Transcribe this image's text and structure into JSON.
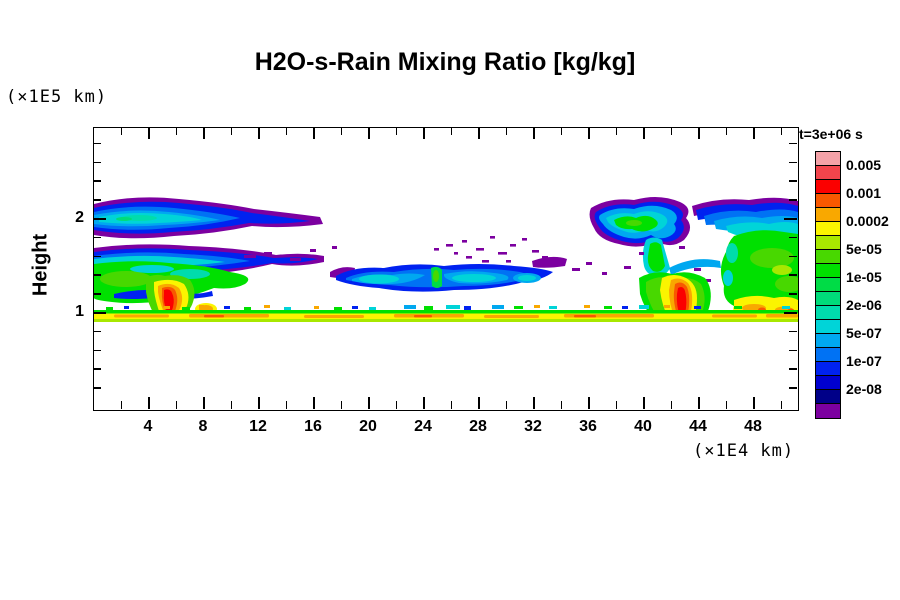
{
  "window": {
    "background": "#ffffff"
  },
  "chart_data": {
    "type": "heatmap",
    "subtype": "filled-contour cross-section",
    "title": "H2O-s-Rain Mixing Ratio [kg/kg]",
    "time_annotation": "t=3e+06 s",
    "x_axis": {
      "unit_label": "(×1E4 km)",
      "range": [
        0,
        51.2
      ],
      "major_ticks": [
        4,
        8,
        12,
        16,
        20,
        24,
        28,
        32,
        36,
        40,
        44,
        48
      ],
      "minor_tick_step": 2
    },
    "y_axis": {
      "label": "Height",
      "unit_label": "(×1E5 km)",
      "range": [
        0,
        3.0
      ],
      "major_ticks": [
        1,
        2
      ],
      "minor_tick_step": 0.2
    },
    "colorbar": {
      "scale": "logarithmic 1-2-5 steps, highest values at top",
      "labels": [
        "0.005",
        "0.001",
        "0.0002",
        "5e-05",
        "1e-05",
        "2e-06",
        "5e-07",
        "1e-07",
        "2e-08"
      ],
      "colors_top_to_bottom": [
        "#F4A2A8",
        "#F2444C",
        "#FB0000",
        "#F85800",
        "#F9A800",
        "#FBF400",
        "#A8E800",
        "#48D800",
        "#00E000",
        "#00DC46",
        "#00DC7A",
        "#00DCAC",
        "#00D4D8",
        "#00A8F0",
        "#0072F4",
        "#0022F0",
        "#0000D0",
        "#000088",
        "#7C00A0"
      ]
    },
    "depicted_features": [
      "thin multicolor rain band (green/yellow with orange streaks) spanning full width at height ~1",
      "left cloud complex x~0-16: blue/cyan upper band, green lower mass, red-orange plume at x~5.5 reaching the surface band",
      "middle elongated cloud x~17-27 at height ~1.5: dark blue edges, cyan interior, green core, purple speckles above",
      "right convective complex x~36-51: anvil cloud with green core, red-orange plume at x~42.5, large green mass with blue/cyan band along top near height ~2",
      "purple fringes mark lowest mixing-ratio contour around all clouds"
    ]
  }
}
